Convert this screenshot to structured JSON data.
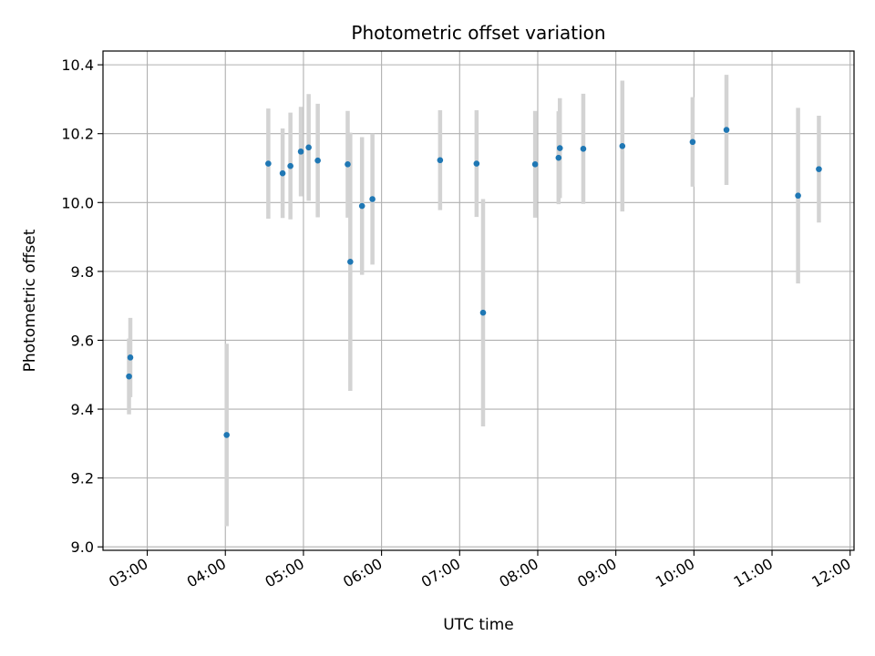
{
  "chart_data": {
    "type": "scatter",
    "title": "Photometric offset variation",
    "xlabel": "UTC time",
    "ylabel": "Photometric offset",
    "x_ticks": [
      "03:00",
      "04:00",
      "05:00",
      "06:00",
      "07:00",
      "08:00",
      "09:00",
      "10:00",
      "11:00",
      "12:00"
    ],
    "x_range": [
      "02:26",
      "12:03"
    ],
    "y_ticks": [
      "9.0",
      "9.2",
      "9.4",
      "9.6",
      "9.8",
      "10.0",
      "10.2",
      "10.4"
    ],
    "ylim": [
      8.99,
      10.44
    ],
    "grid": true,
    "colors": {
      "marker": "#1f77b4",
      "errorbar": "#d3d3d3",
      "grid": "#b0b0b0"
    },
    "points": [
      {
        "x": "02:46",
        "y": 9.495,
        "err": 0.11
      },
      {
        "x": "02:47",
        "y": 9.55,
        "err": 0.115
      },
      {
        "x": "04:01",
        "y": 9.325,
        "err": 0.265
      },
      {
        "x": "04:33",
        "y": 10.113,
        "err": 0.16
      },
      {
        "x": "04:44",
        "y": 10.085,
        "err": 0.13
      },
      {
        "x": "04:50",
        "y": 10.106,
        "err": 0.155
      },
      {
        "x": "04:58",
        "y": 10.148,
        "err": 0.13
      },
      {
        "x": "05:04",
        "y": 10.16,
        "err": 0.155
      },
      {
        "x": "05:11",
        "y": 10.122,
        "err": 0.165
      },
      {
        "x": "05:34",
        "y": 10.111,
        "err": 0.155
      },
      {
        "x": "05:36",
        "y": 9.828,
        "err": 0.375
      },
      {
        "x": "05:45",
        "y": 9.99,
        "err": 0.2
      },
      {
        "x": "05:53",
        "y": 10.01,
        "err": 0.19
      },
      {
        "x": "06:45",
        "y": 10.123,
        "err": 0.145
      },
      {
        "x": "07:13",
        "y": 10.113,
        "err": 0.155
      },
      {
        "x": "07:18",
        "y": 9.68,
        "err": 0.33
      },
      {
        "x": "07:58",
        "y": 10.111,
        "err": 0.155
      },
      {
        "x": "08:16",
        "y": 10.13,
        "err": 0.135
      },
      {
        "x": "08:17",
        "y": 10.158,
        "err": 0.145
      },
      {
        "x": "08:35",
        "y": 10.156,
        "err": 0.16
      },
      {
        "x": "09:05",
        "y": 10.164,
        "err": 0.19
      },
      {
        "x": "09:59",
        "y": 10.176,
        "err": 0.13
      },
      {
        "x": "10:25",
        "y": 10.211,
        "err": 0.16
      },
      {
        "x": "11:20",
        "y": 10.02,
        "err": 0.255
      },
      {
        "x": "11:36",
        "y": 10.097,
        "err": 0.155
      }
    ]
  }
}
